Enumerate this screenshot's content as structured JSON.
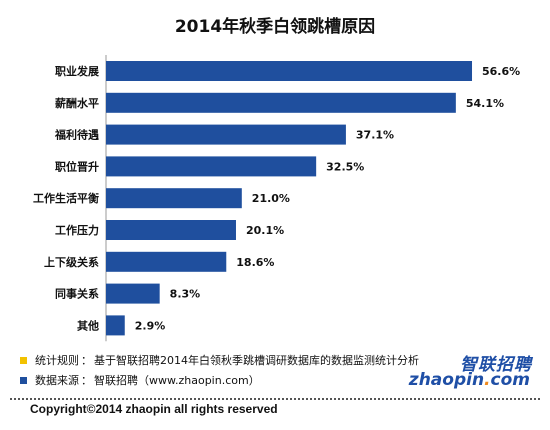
{
  "chart_data": {
    "type": "bar",
    "orientation": "horizontal",
    "title": "2014年秋季白领跳槽原因",
    "categories": [
      "职业发展",
      "薪酬水平",
      "福利待遇",
      "职位晋升",
      "工作生活平衡",
      "工作压力",
      "上下级关系",
      "同事关系",
      "其他"
    ],
    "values": [
      56.6,
      54.1,
      37.1,
      32.5,
      21.0,
      20.1,
      18.6,
      8.3,
      2.9
    ],
    "value_labels": [
      "56.6%",
      "54.1%",
      "37.1%",
      "32.5%",
      "21.0%",
      "20.1%",
      "18.6%",
      "8.3%",
      "2.9%"
    ],
    "xlim": [
      0,
      60
    ],
    "grid": false,
    "bar_color": "#1f4f9e"
  },
  "notes": [
    {
      "label": "统计规则",
      "text": "基于智联招聘2014年白领秋季跳槽调研数据库的数据监测统计分析",
      "marker_color": "#f2c200"
    },
    {
      "label": "数据来源",
      "text": "智联招聘（www.zhaopin.com）",
      "marker_color": "#1f4f9e"
    }
  ],
  "logo": {
    "cn": "智联招聘",
    "en_left": "zhaopin",
    "en_dot": ".",
    "en_right": "com"
  },
  "copyright": "Copyright©2014 zhaopin all rights reserved"
}
